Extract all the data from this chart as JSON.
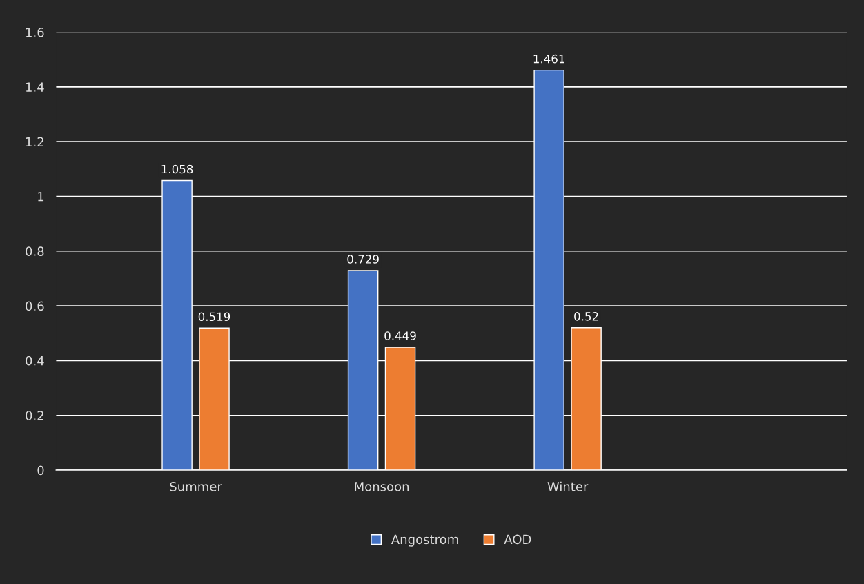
{
  "chart_data": {
    "type": "bar",
    "categories": [
      "Summer",
      "Monsoon",
      "Winter",
      null
    ],
    "series": [
      {
        "name": "Angostrom",
        "color": "#4472c4",
        "values": [
          1.058,
          0.729,
          1.461,
          null
        ]
      },
      {
        "name": "AOD",
        "color": "#ed7d31",
        "values": [
          0.519,
          0.449,
          0.52,
          null
        ]
      }
    ],
    "ylim": [
      0,
      1.6
    ],
    "yticks": [
      0,
      0.2,
      0.4,
      0.6,
      0.8,
      1,
      1.2,
      1.4,
      1.6
    ],
    "grid": "y",
    "legend": "bottom",
    "data_labels": true
  }
}
